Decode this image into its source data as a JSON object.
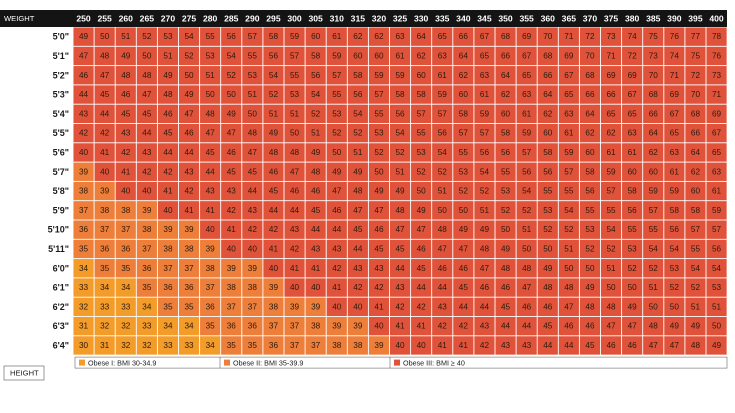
{
  "chart_data": {
    "type": "heatmap",
    "row_header": "HEIGHT",
    "col_header": "WEIGHT",
    "weights": [
      "250",
      "255",
      "260",
      "265",
      "270",
      "275",
      "280",
      "285",
      "290",
      "295",
      "300",
      "305",
      "310",
      "315",
      "320",
      "325",
      "330",
      "335",
      "340",
      "345",
      "350",
      "355",
      "360",
      "365",
      "370",
      "375",
      "380",
      "385",
      "390",
      "395",
      "400"
    ],
    "heights": [
      "5'0\"",
      "5'1\"",
      "5'2\"",
      "5'3\"",
      "5'4\"",
      "5'5\"",
      "5'6\"",
      "5'7\"",
      "5'8\"",
      "5'9\"",
      "5'10\"",
      "5'11\"",
      "6'0\"",
      "6'1\"",
      "6'2\"",
      "6'3\"",
      "6'4\""
    ],
    "values": [
      [
        49,
        50,
        51,
        52,
        53,
        54,
        55,
        56,
        57,
        58,
        59,
        60,
        61,
        62,
        62,
        63,
        64,
        65,
        66,
        67,
        68,
        69,
        70,
        71,
        72,
        73,
        74,
        75,
        76,
        77,
        78
      ],
      [
        47,
        48,
        49,
        50,
        51,
        52,
        53,
        54,
        55,
        56,
        57,
        58,
        59,
        60,
        60,
        61,
        62,
        63,
        64,
        65,
        66,
        67,
        68,
        69,
        70,
        71,
        72,
        73,
        74,
        75,
        76
      ],
      [
        46,
        47,
        48,
        48,
        49,
        50,
        51,
        52,
        53,
        54,
        55,
        56,
        57,
        58,
        59,
        59,
        60,
        61,
        62,
        63,
        64,
        65,
        66,
        67,
        68,
        69,
        69,
        70,
        71,
        72,
        73
      ],
      [
        44,
        45,
        46,
        47,
        48,
        49,
        50,
        50,
        51,
        52,
        53,
        54,
        55,
        56,
        57,
        58,
        58,
        59,
        60,
        61,
        62,
        63,
        64,
        65,
        66,
        66,
        67,
        68,
        69,
        70,
        71
      ],
      [
        43,
        44,
        45,
        45,
        46,
        47,
        48,
        49,
        50,
        51,
        51,
        52,
        53,
        54,
        55,
        56,
        57,
        57,
        58,
        59,
        60,
        61,
        62,
        63,
        64,
        65,
        65,
        66,
        67,
        68,
        69
      ],
      [
        42,
        42,
        43,
        44,
        45,
        46,
        47,
        47,
        48,
        49,
        50,
        51,
        52,
        52,
        53,
        54,
        55,
        56,
        57,
        57,
        58,
        59,
        60,
        61,
        62,
        62,
        63,
        64,
        65,
        66,
        67
      ],
      [
        40,
        41,
        42,
        43,
        44,
        44,
        45,
        46,
        47,
        48,
        48,
        49,
        50,
        51,
        52,
        52,
        53,
        54,
        55,
        56,
        56,
        57,
        58,
        59,
        60,
        61,
        61,
        62,
        63,
        64,
        65
      ],
      [
        39,
        40,
        41,
        42,
        42,
        43,
        44,
        45,
        45,
        46,
        47,
        48,
        49,
        49,
        50,
        51,
        52,
        52,
        53,
        54,
        55,
        56,
        56,
        57,
        58,
        59,
        60,
        60,
        61,
        62,
        63
      ],
      [
        38,
        39,
        40,
        40,
        41,
        42,
        43,
        43,
        44,
        45,
        46,
        46,
        47,
        48,
        49,
        49,
        50,
        51,
        52,
        52,
        53,
        54,
        55,
        55,
        56,
        57,
        58,
        59,
        59,
        60,
        61
      ],
      [
        37,
        38,
        38,
        39,
        40,
        41,
        41,
        42,
        43,
        44,
        44,
        45,
        46,
        47,
        47,
        48,
        49,
        50,
        50,
        51,
        52,
        52,
        53,
        54,
        55,
        55,
        56,
        57,
        58,
        58,
        59
      ],
      [
        36,
        37,
        37,
        38,
        39,
        39,
        40,
        41,
        42,
        42,
        43,
        44,
        44,
        45,
        46,
        47,
        47,
        48,
        49,
        49,
        50,
        51,
        52,
        52,
        53,
        54,
        55,
        55,
        56,
        57,
        57
      ],
      [
        35,
        36,
        36,
        37,
        38,
        38,
        39,
        40,
        40,
        41,
        42,
        43,
        43,
        44,
        45,
        45,
        46,
        47,
        47,
        48,
        49,
        50,
        50,
        51,
        52,
        52,
        53,
        54,
        54,
        55,
        56
      ],
      [
        34,
        35,
        35,
        36,
        37,
        37,
        38,
        39,
        39,
        40,
        41,
        41,
        42,
        43,
        43,
        44,
        45,
        46,
        46,
        47,
        48,
        48,
        49,
        50,
        50,
        51,
        52,
        52,
        53,
        54,
        54
      ],
      [
        33,
        34,
        34,
        35,
        36,
        36,
        37,
        38,
        38,
        39,
        40,
        40,
        41,
        42,
        42,
        43,
        44,
        44,
        45,
        46,
        46,
        47,
        48,
        48,
        49,
        50,
        50,
        51,
        52,
        52,
        53
      ],
      [
        32,
        33,
        33,
        34,
        35,
        35,
        36,
        37,
        37,
        38,
        39,
        39,
        40,
        40,
        41,
        42,
        42,
        43,
        44,
        44,
        45,
        46,
        46,
        47,
        48,
        48,
        49,
        50,
        50,
        51,
        51
      ],
      [
        31,
        32,
        32,
        33,
        34,
        34,
        35,
        36,
        36,
        37,
        37,
        38,
        39,
        39,
        40,
        41,
        41,
        42,
        42,
        43,
        44,
        44,
        45,
        46,
        46,
        47,
        47,
        48,
        49,
        49,
        50
      ],
      [
        30,
        31,
        32,
        32,
        33,
        33,
        34,
        35,
        35,
        36,
        37,
        37,
        38,
        38,
        39,
        40,
        40,
        41,
        41,
        42,
        43,
        43,
        44,
        44,
        45,
        46,
        46,
        47,
        47,
        48,
        49
      ]
    ],
    "legend": [
      {
        "label": "Obese I: BMI 30-34.9",
        "color": "#f39c2a",
        "min": 30,
        "max": 34.9
      },
      {
        "label": "Obese II: BMI 35-39.9",
        "color": "#ee7f3a",
        "min": 35,
        "max": 39.9
      },
      {
        "label": "Obese III: BMI ≥ 40",
        "color": "#e0533a",
        "min": 40,
        "max": null
      }
    ],
    "header_color": "#141414",
    "grid": true
  }
}
